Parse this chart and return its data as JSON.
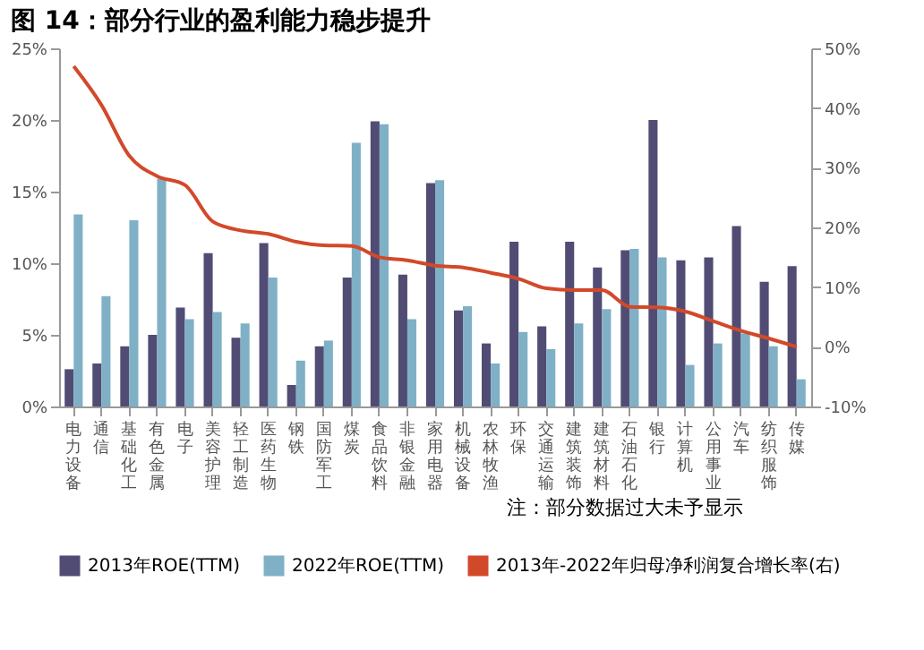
{
  "chart_data": {
    "type": "bar",
    "title": "图 14：部分行业的盈利能力稳步提升",
    "categories": [
      "电力设备",
      "通信",
      "基础化工",
      "有色金属",
      "电子",
      "美容护理",
      "轻工制造",
      "医药生物",
      "钢铁",
      "国防军工",
      "煤炭",
      "食品饮料",
      "非银金融",
      "家用电器",
      "机械设备",
      "农林牧渔",
      "环保",
      "交通运输",
      "建筑装饰",
      "建筑材料",
      "石油石化",
      "银行",
      "计算机",
      "公用事业",
      "汽车",
      "纺织服饰",
      "传媒"
    ],
    "series": [
      {
        "name": "2013年ROE(TTM)",
        "color": "#514c74",
        "values": [
          2.6,
          3.0,
          4.2,
          5.0,
          6.9,
          10.7,
          4.8,
          11.4,
          1.5,
          4.2,
          9.0,
          19.9,
          9.2,
          15.6,
          6.7,
          4.4,
          11.5,
          5.6,
          11.5,
          9.7,
          10.9,
          20.0,
          10.2,
          10.4,
          12.6,
          8.7,
          9.8
        ]
      },
      {
        "name": "2022年ROE(TTM)",
        "color": "#80b0c6",
        "values": [
          13.4,
          7.7,
          13.0,
          15.9,
          6.1,
          6.6,
          5.8,
          9.0,
          3.2,
          4.6,
          18.4,
          19.7,
          6.1,
          15.8,
          7.0,
          3.0,
          5.2,
          4.0,
          5.8,
          6.8,
          11.0,
          10.4,
          2.9,
          4.4,
          5.1,
          4.2,
          1.9
        ]
      },
      {
        "name": "2013年-2022年归母净利润复合增长率(右)",
        "color": "#d2492a",
        "type": "line",
        "axis": "y2",
        "values": [
          47,
          40.5,
          32,
          28.6,
          27.1,
          21,
          19.5,
          18.9,
          17.6,
          17,
          16.9,
          15,
          14.5,
          13.6,
          13.3,
          12.4,
          11.4,
          9.8,
          9.5,
          9.5,
          6.7,
          6.6,
          5.9,
          4.3,
          2.7,
          1.4,
          0
        ]
      }
    ],
    "ylim": [
      0,
      25
    ],
    "yticks": [
      {
        "value": 0,
        "label": "0%"
      },
      {
        "value": 5,
        "label": "5%"
      },
      {
        "value": 10,
        "label": "10%"
      },
      {
        "value": 15,
        "label": "15%"
      },
      {
        "value": 20,
        "label": "20%"
      },
      {
        "value": 25,
        "label": "25%"
      }
    ],
    "y2lim": [
      -10,
      50
    ],
    "y2ticks": [
      {
        "value": -10,
        "label": "-10%"
      },
      {
        "value": 0,
        "label": "0%"
      },
      {
        "value": 10,
        "label": "10%"
      },
      {
        "value": 20,
        "label": "20%"
      },
      {
        "value": 30,
        "label": "30%"
      },
      {
        "value": 40,
        "label": "40%"
      },
      {
        "value": 50,
        "label": "50%"
      }
    ],
    "legend": "bottom",
    "grid": false,
    "annotations": [
      "注：部分数据过大未予显示"
    ]
  }
}
